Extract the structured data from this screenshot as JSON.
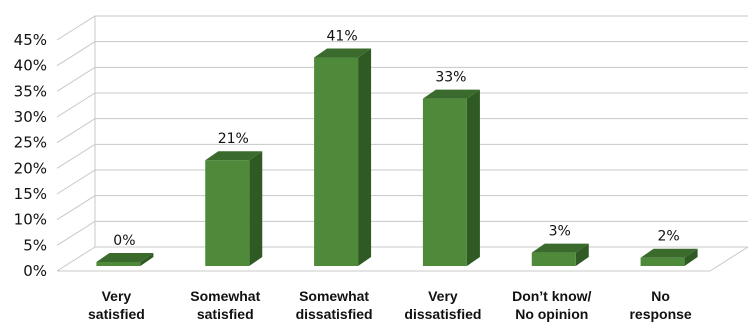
{
  "chart_data": {
    "type": "bar",
    "title": "",
    "xlabel": "",
    "ylabel": "",
    "categories": [
      [
        "Very",
        "satisfied"
      ],
      [
        "Somewhat",
        "satisfied"
      ],
      [
        "Somewhat",
        "dissatisfied"
      ],
      [
        "Very",
        "dissatisfied"
      ],
      [
        "Don’t know/",
        "No opinion"
      ],
      [
        "No",
        "response"
      ]
    ],
    "values": [
      0,
      21,
      41,
      33,
      3,
      2
    ],
    "data_labels": [
      "0%",
      "21%",
      "41%",
      "33%",
      "3%",
      "2%"
    ],
    "y_ticks": [
      "0%",
      "5%",
      "10%",
      "15%",
      "20%",
      "25%",
      "30%",
      "35%",
      "40%",
      "45%"
    ],
    "ylim": [
      0,
      45
    ],
    "grid": true,
    "legend": "none",
    "bar_style": "3d",
    "colors": {
      "bar_front": "#4e8a3a",
      "bar_side": "#2f5a23",
      "bar_top": "#3b6b2c",
      "grid": "#c8c8c8",
      "text": "#111111"
    }
  }
}
